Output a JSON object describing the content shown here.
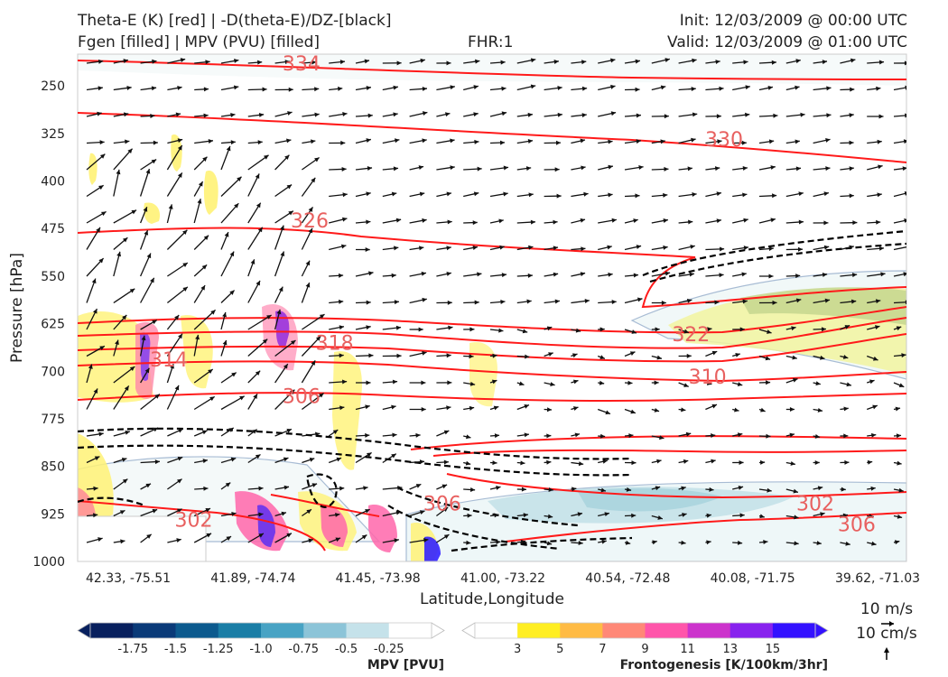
{
  "header": {
    "title_line1": "Theta-E (K) [red] | -D(theta-E)/DZ-[black]",
    "title_line2": "Fgen [filled] | MPV (PVU) [filled]",
    "fhr": "FHR:1",
    "init": "Init: 12/03/2009 @ 00:00 UTC",
    "valid": "Valid: 12/03/2009 @ 01:00 UTC"
  },
  "chart_data": {
    "type": "cross-section",
    "ylabel": "Pressure [hPa]",
    "xlabel": "Latitude,Longitude",
    "y_ticks": [
      250,
      325,
      400,
      475,
      550,
      625,
      700,
      775,
      850,
      925,
      1000
    ],
    "ylim": [
      200,
      1000
    ],
    "x_ticks": [
      "42.33, -75.51",
      "41.89, -74.74",
      "41.45, -73.98",
      "41.00, -73.22",
      "40.54, -72.48",
      "40.08, -71.75",
      "39.62, -71.03"
    ],
    "theta_e_labels": [
      {
        "text": "334",
        "x": 0.27,
        "p": 214
      },
      {
        "text": "330",
        "x": 0.78,
        "p": 334
      },
      {
        "text": "326",
        "x": 0.28,
        "p": 462
      },
      {
        "text": "322",
        "x": 0.74,
        "p": 641
      },
      {
        "text": "318",
        "x": 0.31,
        "p": 655
      },
      {
        "text": "314",
        "x": 0.11,
        "p": 681
      },
      {
        "text": "310",
        "x": 0.76,
        "p": 708
      },
      {
        "text": "306",
        "x": 0.27,
        "p": 739
      },
      {
        "text": "306",
        "x": 0.44,
        "p": 908
      },
      {
        "text": "302",
        "x": 0.89,
        "p": 908
      },
      {
        "text": "306",
        "x": 0.94,
        "p": 941
      },
      {
        "text": "302",
        "x": 0.14,
        "p": 934
      }
    ],
    "mpv_colorbar": {
      "label": "MPV [PVU]",
      "ticks": [
        "-1.75",
        "-1.5",
        "-1.25",
        "-1.0",
        "-0.75",
        "-0.5",
        "-0.25"
      ],
      "colors": [
        "#08205e",
        "#0a3a78",
        "#0c5a8e",
        "#1a7ea6",
        "#48a3c4",
        "#8cc4d8",
        "#c5e2ea",
        "#ffffff"
      ]
    },
    "fgen_colorbar": {
      "label": "Frontogenesis [K/100km/3hr]",
      "ticks": [
        "3",
        "5",
        "7",
        "9",
        "11",
        "13",
        "15"
      ],
      "colors": [
        "#ffffff",
        "#ffee22",
        "#ffbb44",
        "#ff8877",
        "#ff55aa",
        "#cc33cc",
        "#8822ee",
        "#3311ff"
      ]
    },
    "wind_reference": {
      "horizontal": "10 m/s",
      "vertical": "10 cm/s"
    }
  }
}
